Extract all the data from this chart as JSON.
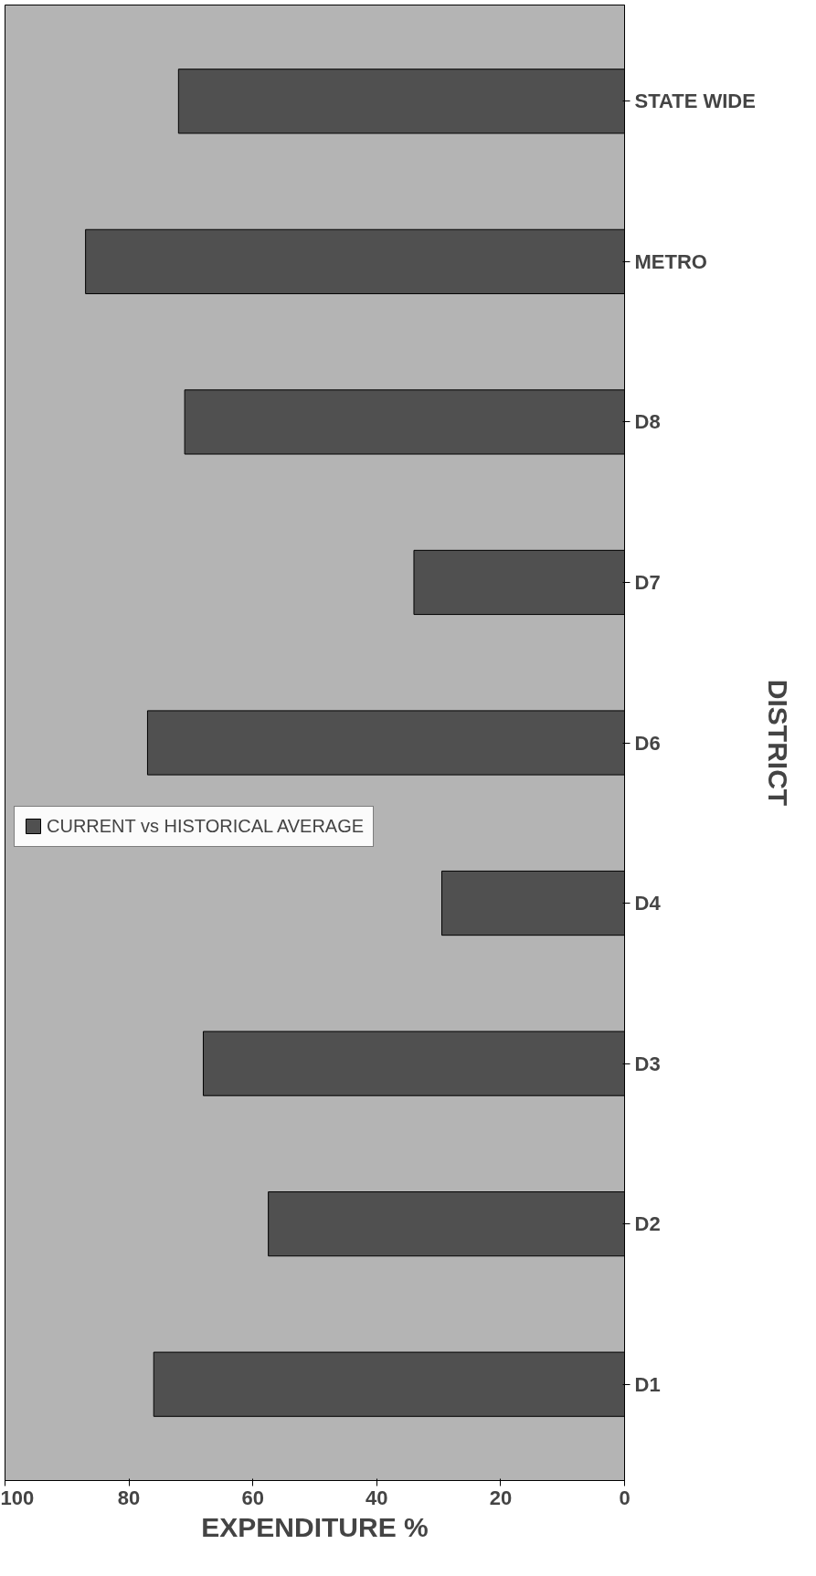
{
  "chart_data": {
    "type": "bar",
    "orientation": "horizontal",
    "xlabel": "EXPENDITURE %",
    "ylabel": "DISTRICT",
    "categories": [
      "STATE WIDE",
      "METRO",
      "D8",
      "D7",
      "D6",
      "D4",
      "D3",
      "D2",
      "D1"
    ],
    "series": [
      {
        "name": "CURRENT vs HISTORICAL AVERAGE",
        "color": "#505050",
        "values": [
          72,
          87,
          71,
          34,
          77,
          29.5,
          68,
          57.5,
          76
        ]
      }
    ],
    "xlim": [
      100,
      0
    ],
    "xticks": [
      100,
      80,
      60,
      40,
      20,
      0
    ],
    "grid": false,
    "legend": "left"
  }
}
